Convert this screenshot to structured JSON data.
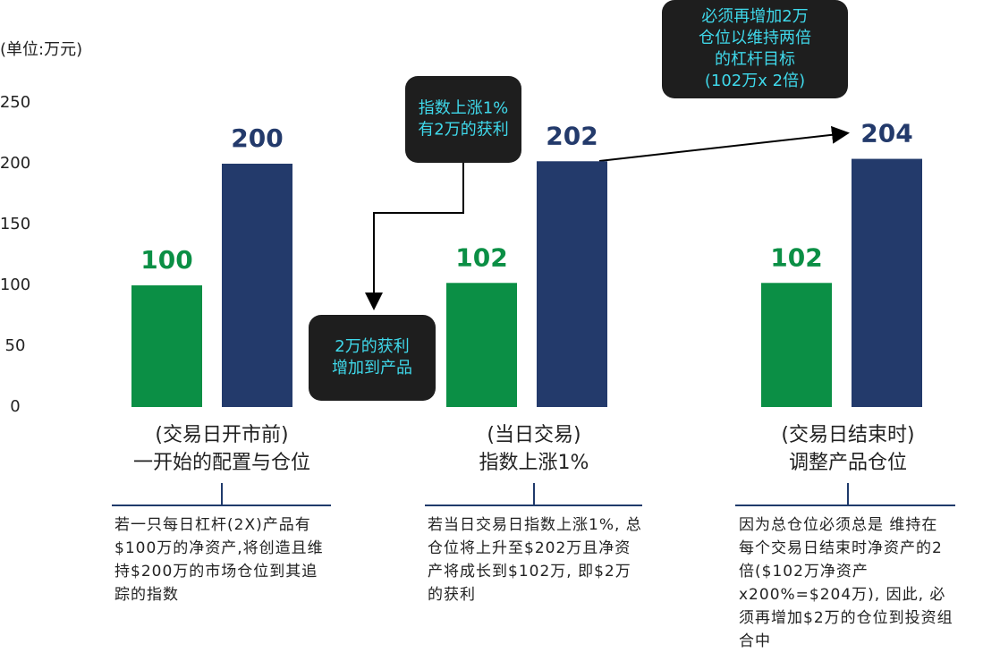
{
  "chart_data": {
    "type": "bar",
    "y_axis_label": "(单位:万元)",
    "categories": [
      [
        "(交易日开市前)",
        "一开始的配置与仓位"
      ],
      [
        "(当日交易)",
        "指数上涨1%"
      ],
      [
        "(交易日结束时)",
        "调整产品仓位"
      ]
    ],
    "series": [
      {
        "color": "#0b8f45",
        "values": [
          100,
          102,
          102
        ]
      },
      {
        "color": "#233a6b",
        "values": [
          200,
          202,
          204
        ]
      }
    ],
    "ylim": [
      0,
      250
    ],
    "yticks": [
      0,
      50,
      100,
      150,
      200,
      250
    ],
    "grid": false,
    "annotations": [
      [
        "指数上涨1%",
        "有2万的获利"
      ],
      [
        "2万的获利",
        "增加到产品"
      ],
      [
        "必须再增加2万",
        "仓位以维持两倍",
        "的杠杆目标",
        "(102万x 2倍)"
      ]
    ],
    "notes": [
      "若一只每日杠杆(2X)产品有$100万的净资产,将创造且维持$200万的市场仓位到其追踪的指数",
      "若当日交易日指数上涨1%, 总仓位将上升至$202万且净资产将成长到$102万, 即$2万的获利",
      "因为总仓位必须总是 维持在每个交易日结束时净资产的2倍($102万净资产x200%=$204万), 因此, 必须再增加$2万的仓位到投资组合中"
    ]
  }
}
